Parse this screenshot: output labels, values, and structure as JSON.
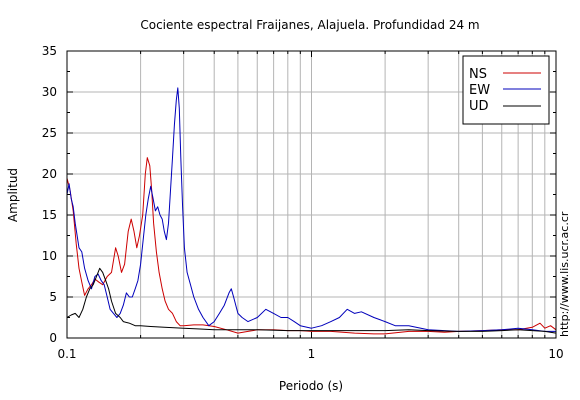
{
  "chart_data": {
    "type": "line",
    "title": "Cociente espectral Fraijanes, Alajuela. Profundidad 24 m",
    "xlabel": "Periodo (s)",
    "ylabel": "Amplitud",
    "xscale": "log",
    "xlim": [
      0.1,
      10
    ],
    "ylim": [
      0,
      35
    ],
    "grid": true,
    "legend_position": "top-right",
    "x_tick_labels": [
      "0.1",
      "1",
      "10"
    ],
    "y_ticks": [
      0,
      5,
      10,
      15,
      20,
      25,
      30,
      35
    ],
    "side_note": "http://www.lis.ucr.ac.cr",
    "series": [
      {
        "name": "NS",
        "color": "#cc0000",
        "points": [
          [
            0.1,
            19.5
          ],
          [
            0.103,
            18.0
          ],
          [
            0.106,
            15.5
          ],
          [
            0.109,
            11.5
          ],
          [
            0.112,
            8.5
          ],
          [
            0.115,
            6.8
          ],
          [
            0.118,
            5.2
          ],
          [
            0.122,
            6.0
          ],
          [
            0.126,
            6.5
          ],
          [
            0.13,
            7.2
          ],
          [
            0.135,
            6.8
          ],
          [
            0.14,
            6.5
          ],
          [
            0.146,
            7.5
          ],
          [
            0.152,
            8.0
          ],
          [
            0.158,
            11.0
          ],
          [
            0.162,
            10.0
          ],
          [
            0.167,
            8.0
          ],
          [
            0.172,
            9.0
          ],
          [
            0.178,
            13.0
          ],
          [
            0.183,
            14.5
          ],
          [
            0.188,
            13.0
          ],
          [
            0.193,
            11.0
          ],
          [
            0.198,
            12.5
          ],
          [
            0.204,
            15.0
          ],
          [
            0.209,
            20.0
          ],
          [
            0.213,
            22.0
          ],
          [
            0.218,
            21.0
          ],
          [
            0.222,
            18.0
          ],
          [
            0.226,
            14.0
          ],
          [
            0.232,
            10.5
          ],
          [
            0.238,
            8.0
          ],
          [
            0.245,
            6.0
          ],
          [
            0.252,
            4.5
          ],
          [
            0.26,
            3.5
          ],
          [
            0.27,
            3.0
          ],
          [
            0.28,
            2.0
          ],
          [
            0.29,
            1.5
          ],
          [
            0.3,
            1.5
          ],
          [
            0.33,
            1.6
          ],
          [
            0.36,
            1.6
          ],
          [
            0.4,
            1.4
          ],
          [
            0.45,
            1.0
          ],
          [
            0.5,
            0.6
          ],
          [
            0.55,
            0.8
          ],
          [
            0.6,
            1.0
          ],
          [
            0.7,
            1.0
          ],
          [
            0.8,
            0.9
          ],
          [
            0.9,
            0.9
          ],
          [
            1.0,
            0.8
          ],
          [
            1.2,
            0.8
          ],
          [
            1.5,
            0.6
          ],
          [
            1.8,
            0.5
          ],
          [
            2.0,
            0.5
          ],
          [
            2.5,
            0.8
          ],
          [
            3.0,
            0.8
          ],
          [
            3.5,
            0.7
          ],
          [
            4.0,
            0.8
          ],
          [
            5.0,
            0.9
          ],
          [
            6.0,
            1.0
          ],
          [
            7.0,
            1.0
          ],
          [
            8.0,
            1.3
          ],
          [
            8.6,
            1.8
          ],
          [
            9.0,
            1.2
          ],
          [
            9.5,
            1.5
          ],
          [
            10.0,
            1.0
          ]
        ]
      },
      {
        "name": "EW",
        "color": "#0000bb",
        "points": [
          [
            0.1,
            17.5
          ],
          [
            0.102,
            18.8
          ],
          [
            0.104,
            17.0
          ],
          [
            0.106,
            16.0
          ],
          [
            0.108,
            14.0
          ],
          [
            0.11,
            12.5
          ],
          [
            0.112,
            11.0
          ],
          [
            0.115,
            10.5
          ],
          [
            0.118,
            8.5
          ],
          [
            0.122,
            7.0
          ],
          [
            0.126,
            6.0
          ],
          [
            0.13,
            7.5
          ],
          [
            0.134,
            7.8
          ],
          [
            0.138,
            7.0
          ],
          [
            0.142,
            6.5
          ],
          [
            0.146,
            5.0
          ],
          [
            0.15,
            3.5
          ],
          [
            0.155,
            3.0
          ],
          [
            0.16,
            2.5
          ],
          [
            0.165,
            3.0
          ],
          [
            0.17,
            4.0
          ],
          [
            0.175,
            5.5
          ],
          [
            0.18,
            5.0
          ],
          [
            0.185,
            5.0
          ],
          [
            0.19,
            6.0
          ],
          [
            0.195,
            7.0
          ],
          [
            0.2,
            9.0
          ],
          [
            0.205,
            12.0
          ],
          [
            0.21,
            15.0
          ],
          [
            0.215,
            17.0
          ],
          [
            0.22,
            18.5
          ],
          [
            0.225,
            17.0
          ],
          [
            0.23,
            15.5
          ],
          [
            0.235,
            16.0
          ],
          [
            0.24,
            15.0
          ],
          [
            0.245,
            14.5
          ],
          [
            0.25,
            13.0
          ],
          [
            0.255,
            12.0
          ],
          [
            0.26,
            14.0
          ],
          [
            0.265,
            18.0
          ],
          [
            0.27,
            22.0
          ],
          [
            0.275,
            26.0
          ],
          [
            0.28,
            29.0
          ],
          [
            0.284,
            30.5
          ],
          [
            0.288,
            28.0
          ],
          [
            0.292,
            22.0
          ],
          [
            0.297,
            16.0
          ],
          [
            0.302,
            11.0
          ],
          [
            0.31,
            8.0
          ],
          [
            0.32,
            6.5
          ],
          [
            0.33,
            5.0
          ],
          [
            0.345,
            3.5
          ],
          [
            0.36,
            2.5
          ],
          [
            0.38,
            1.5
          ],
          [
            0.4,
            2.0
          ],
          [
            0.42,
            3.0
          ],
          [
            0.44,
            4.0
          ],
          [
            0.46,
            5.5
          ],
          [
            0.47,
            6.0
          ],
          [
            0.48,
            5.0
          ],
          [
            0.5,
            3.0
          ],
          [
            0.52,
            2.5
          ],
          [
            0.55,
            2.0
          ],
          [
            0.6,
            2.5
          ],
          [
            0.65,
            3.5
          ],
          [
            0.7,
            3.0
          ],
          [
            0.75,
            2.5
          ],
          [
            0.8,
            2.5
          ],
          [
            0.85,
            2.0
          ],
          [
            0.9,
            1.5
          ],
          [
            1.0,
            1.2
          ],
          [
            1.1,
            1.5
          ],
          [
            1.2,
            2.0
          ],
          [
            1.3,
            2.5
          ],
          [
            1.4,
            3.5
          ],
          [
            1.5,
            3.0
          ],
          [
            1.6,
            3.2
          ],
          [
            1.8,
            2.5
          ],
          [
            2.0,
            2.0
          ],
          [
            2.2,
            1.5
          ],
          [
            2.5,
            1.5
          ],
          [
            3.0,
            1.0
          ],
          [
            4.0,
            0.8
          ],
          [
            5.0,
            0.9
          ],
          [
            6.0,
            1.0
          ],
          [
            7.0,
            1.2
          ],
          [
            8.0,
            1.0
          ],
          [
            9.0,
            0.8
          ],
          [
            10.0,
            0.8
          ]
        ]
      },
      {
        "name": "UD",
        "color": "#000000",
        "points": [
          [
            0.1,
            2.5
          ],
          [
            0.104,
            2.8
          ],
          [
            0.108,
            3.0
          ],
          [
            0.112,
            2.5
          ],
          [
            0.116,
            3.5
          ],
          [
            0.12,
            5.0
          ],
          [
            0.124,
            6.0
          ],
          [
            0.128,
            6.5
          ],
          [
            0.132,
            7.5
          ],
          [
            0.136,
            8.5
          ],
          [
            0.14,
            8.0
          ],
          [
            0.144,
            7.0
          ],
          [
            0.148,
            6.0
          ],
          [
            0.152,
            4.5
          ],
          [
            0.158,
            3.0
          ],
          [
            0.165,
            2.5
          ],
          [
            0.17,
            2.0
          ],
          [
            0.18,
            1.8
          ],
          [
            0.19,
            1.5
          ],
          [
            0.2,
            1.5
          ],
          [
            0.22,
            1.4
          ],
          [
            0.25,
            1.3
          ],
          [
            0.3,
            1.2
          ],
          [
            0.35,
            1.1
          ],
          [
            0.4,
            1.0
          ],
          [
            0.5,
            1.0
          ],
          [
            0.6,
            1.0
          ],
          [
            0.8,
            0.9
          ],
          [
            1.0,
            0.9
          ],
          [
            1.3,
            0.9
          ],
          [
            1.6,
            0.9
          ],
          [
            2.0,
            0.9
          ],
          [
            2.5,
            1.0
          ],
          [
            3.0,
            0.9
          ],
          [
            4.0,
            0.8
          ],
          [
            5.0,
            0.8
          ],
          [
            6.0,
            0.9
          ],
          [
            7.0,
            1.0
          ],
          [
            8.0,
            0.9
          ],
          [
            9.0,
            0.8
          ],
          [
            10.0,
            0.6
          ]
        ]
      }
    ]
  }
}
